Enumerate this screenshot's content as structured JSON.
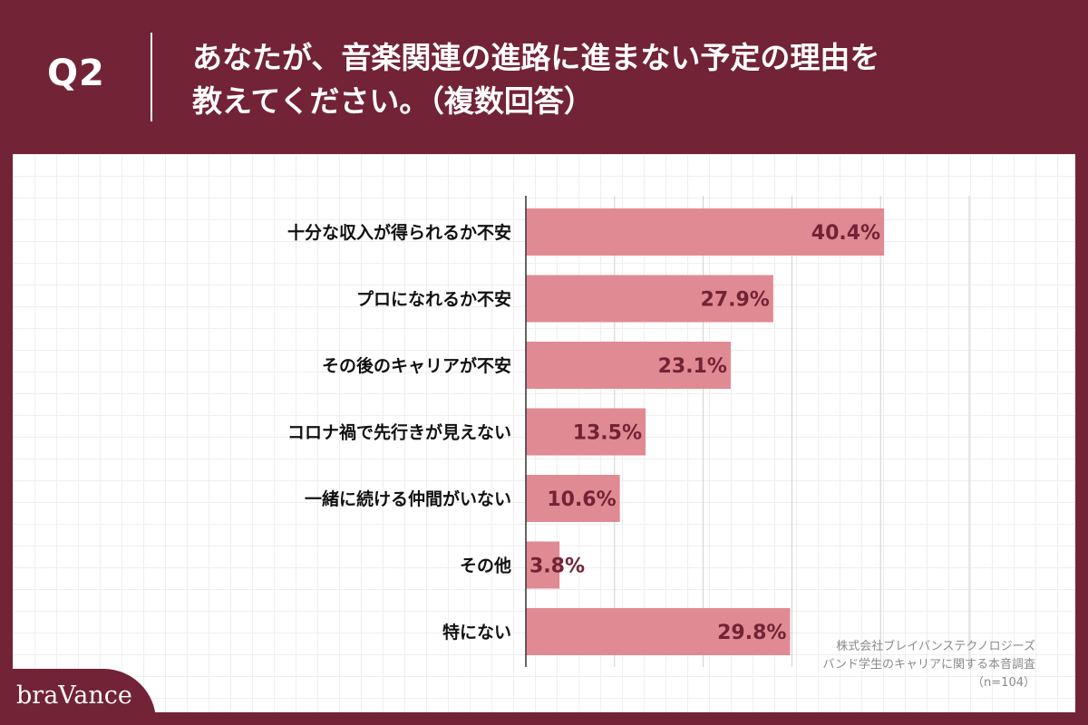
{
  "header": {
    "question_number": "Q2",
    "title_lines": [
      "あなたが、音楽関連の進路に進まない予定の理由を",
      "教えてください。（複数回答）"
    ]
  },
  "colors": {
    "background": "#722336",
    "bar": "#e08a93",
    "value_label": "#722336",
    "axis": "#333333",
    "gridline": "#cfcfcf"
  },
  "chart_data": {
    "type": "bar",
    "orientation": "horizontal",
    "categories": [
      "十分な収入が得られるか不安",
      "プロになれるか不安",
      "その後のキャリアが不安",
      "コロナ禍で先行きが見えない",
      "一緒に続ける仲間がいない",
      "その他",
      "特にない"
    ],
    "values": [
      40.4,
      27.9,
      23.1,
      13.5,
      10.6,
      3.8,
      29.8
    ],
    "value_labels": [
      "40.4%",
      "27.9%",
      "23.1%",
      "13.5%",
      "10.6%",
      "3.8%",
      "29.8%"
    ],
    "xlim": [
      0,
      50
    ],
    "grid": true,
    "tick_labels_shown": false,
    "legend": "none"
  },
  "source": {
    "lines": [
      "株式会社ブレイバンステクノロジーズ",
      "バンド学生のキャリアに関する本音調査",
      "（n=104）"
    ]
  },
  "brand": {
    "logo_text": "braVance"
  }
}
